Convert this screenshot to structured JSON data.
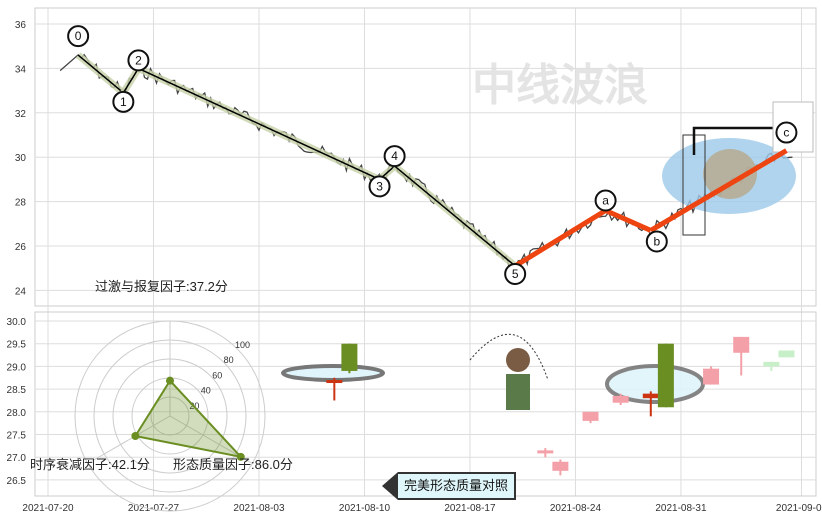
{
  "chart_data": [
    {
      "type": "line",
      "title": "",
      "watermark": "中线波浪",
      "y_ticks": [
        36,
        34,
        32,
        30,
        28,
        26,
        24
      ],
      "ylim": [
        23.3,
        36.6
      ],
      "x_ticks": [
        "2021-07-20",
        "2021-07-27",
        "2021-08-03",
        "2021-08-10",
        "2021-08-17",
        "2021-08-24",
        "2021-08-31",
        "2021-09-08"
      ],
      "grid": true,
      "wave_pivots": [
        {
          "label": "0",
          "date": "2021-07-22",
          "price": 34.6
        },
        {
          "label": "1",
          "date": "2021-07-25",
          "price": 32.9
        },
        {
          "label": "2",
          "date": "2021-07-26",
          "price": 34.0
        },
        {
          "label": "3",
          "date": "2021-08-11",
          "price": 29.0
        },
        {
          "label": "4",
          "date": "2021-08-12",
          "price": 29.6
        },
        {
          "label": "5",
          "date": "2021-08-20",
          "price": 25.1
        },
        {
          "label": "a",
          "date": "2021-08-26",
          "price": 27.6
        },
        {
          "label": "b",
          "date": "2021-08-29",
          "price": 26.7
        },
        {
          "label": "c",
          "date": "2021-09-07",
          "price": 30.3
        }
      ],
      "impulse_color": "#000000",
      "correction_color": "#ee4411"
    },
    {
      "type": "radar",
      "axes": [
        {
          "name": "过激与报复因子",
          "value": 37.2,
          "label": "过激与报复因子:37.2分"
        },
        {
          "name": "形态质量因子",
          "value": 86.0,
          "label": "形态质量因子:86.0分"
        },
        {
          "name": "时序衰减因子",
          "value": 42.1,
          "label": "时序衰减因子:42.1分"
        }
      ],
      "r_ticks": [
        "20",
        "40",
        "60",
        "80",
        "100"
      ],
      "color": "#6b8e23"
    },
    {
      "type": "candlestick",
      "y_ticks": [
        "30.0",
        "29.5",
        "29.0",
        "28.5",
        "28.0",
        "27.5",
        "27.0",
        "26.5"
      ],
      "ylim": [
        26.2,
        30.2
      ],
      "x_ticks": [
        "2021-07-20",
        "2021-07-27",
        "2021-08-03",
        "2021-08-10",
        "2021-08-17",
        "2021-08-24",
        "2021-08-31",
        "2021-09-08"
      ],
      "candles": [
        {
          "date": "2021-08-08",
          "open": 28.7,
          "close": 28.65,
          "high": 28.75,
          "low": 28.25,
          "color": "#cc3311"
        },
        {
          "date": "2021-08-09",
          "open": 28.9,
          "close": 29.5,
          "high": 29.5,
          "low": 28.85,
          "color": "#6b8e23"
        },
        {
          "date": "2021-08-22",
          "open": 27.1,
          "close": 27.15,
          "high": 27.2,
          "low": 27.0,
          "color": "#f4a0a8"
        },
        {
          "date": "2021-08-23",
          "open": 26.9,
          "close": 26.7,
          "high": 26.95,
          "low": 26.6,
          "color": "#f4a0a8"
        },
        {
          "date": "2021-08-25",
          "open": 27.8,
          "close": 28.0,
          "high": 28.0,
          "low": 27.75,
          "color": "#f4a0a8"
        },
        {
          "date": "2021-08-27",
          "open": 28.2,
          "close": 28.35,
          "high": 28.4,
          "low": 28.15,
          "color": "#f4a0a8"
        },
        {
          "date": "2021-08-29",
          "open": 28.3,
          "close": 28.4,
          "high": 28.45,
          "low": 27.9,
          "color": "#cc3311"
        },
        {
          "date": "2021-08-30",
          "open": 28.1,
          "close": 29.5,
          "high": 29.5,
          "low": 28.1,
          "color": "#6b8e23"
        },
        {
          "date": "2021-09-02",
          "open": 28.6,
          "close": 28.95,
          "high": 29.0,
          "low": 28.6,
          "color": "#f4a0a8"
        },
        {
          "date": "2021-09-04",
          "open": 29.3,
          "close": 29.65,
          "high": 29.65,
          "low": 28.8,
          "color": "#f4a0a8"
        },
        {
          "date": "2021-09-06",
          "open": 29.0,
          "close": 29.1,
          "high": 29.1,
          "low": 28.9,
          "color": "#c8f0c8"
        },
        {
          "date": "2021-09-07",
          "open": 29.2,
          "close": 29.35,
          "high": 29.35,
          "low": 29.2,
          "color": "#c8f0c8"
        }
      ]
    }
  ],
  "compare_button": "完美形态质量对照"
}
